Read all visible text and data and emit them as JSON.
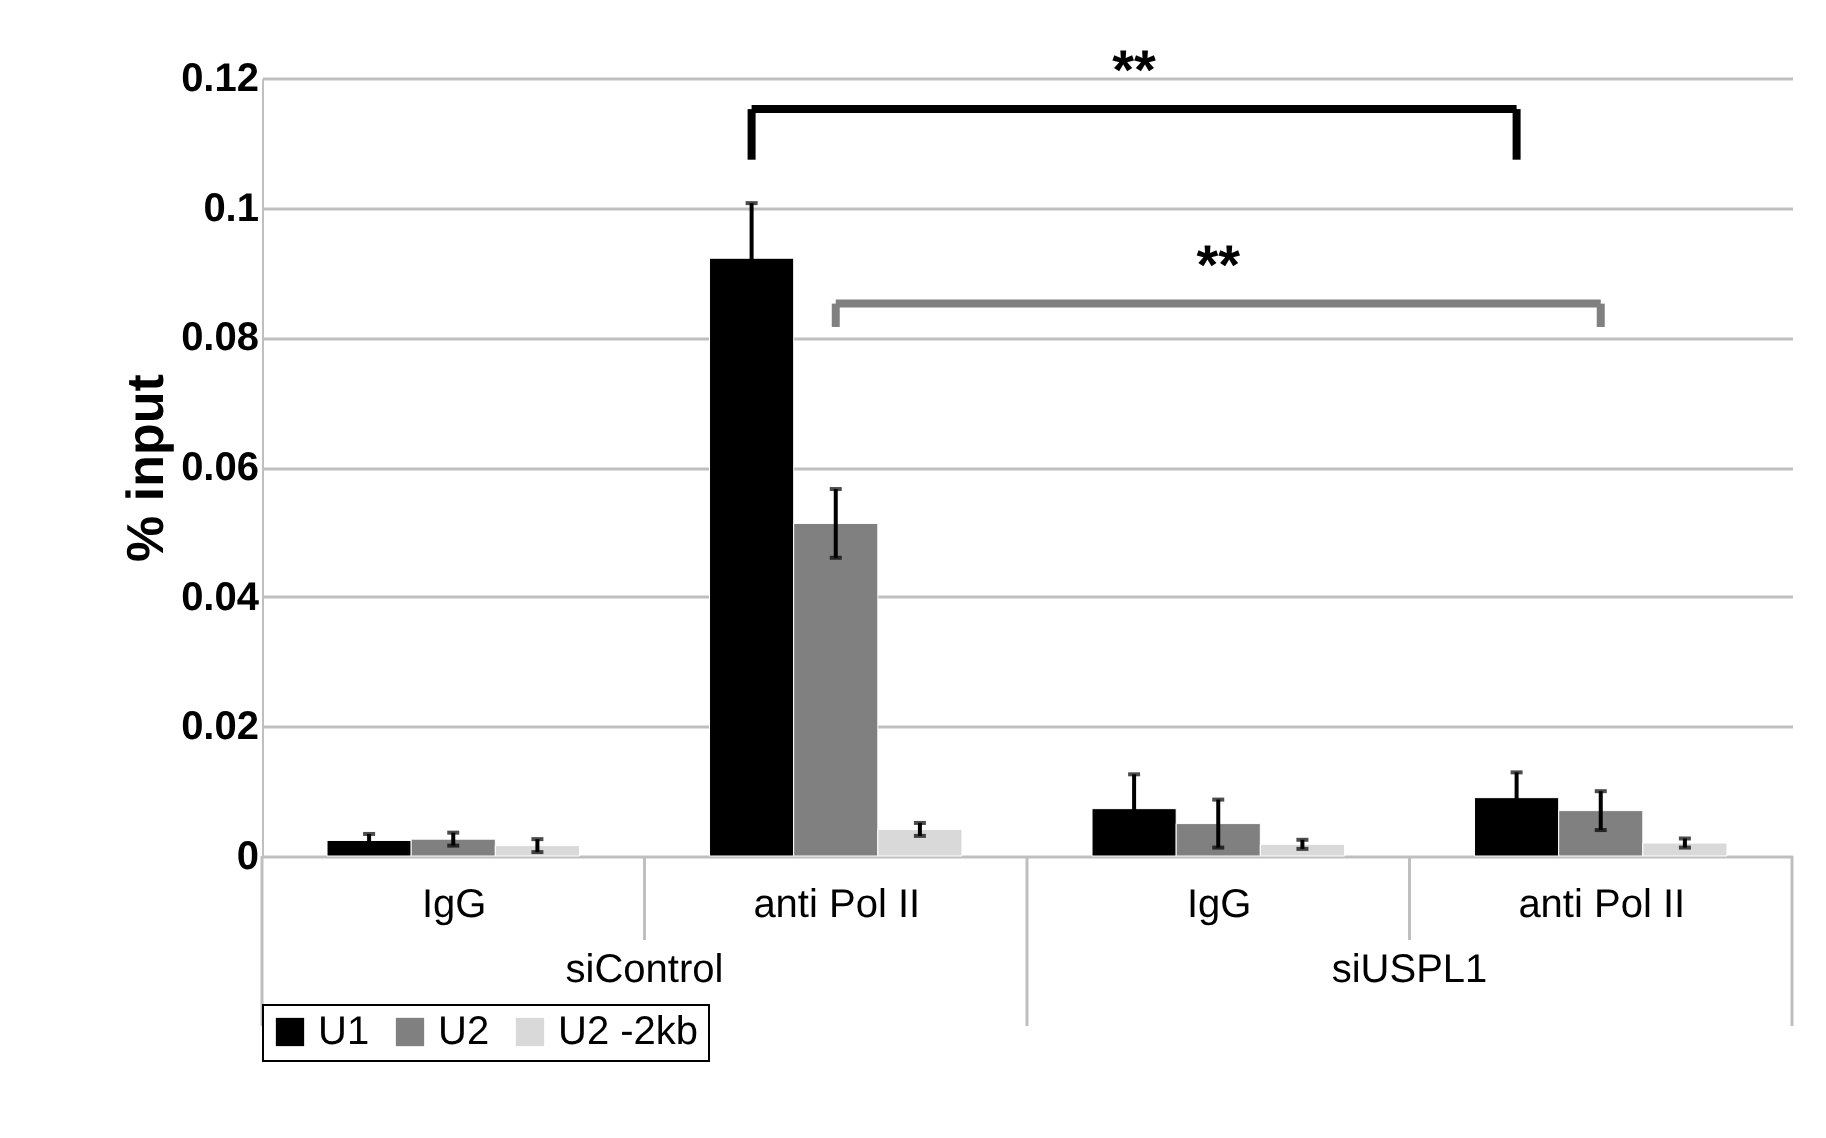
{
  "chart_data": {
    "type": "bar",
    "ylabel": "% input",
    "categories": [
      "IgG",
      "anti Pol II",
      "IgG",
      "anti Pol II"
    ],
    "series": [
      {
        "name": "U1",
        "color": "#000000",
        "values": [
          0.0024,
          0.0922,
          0.0073,
          0.009
        ],
        "errors": [
          0.001,
          0.0085,
          0.0053,
          0.0039
        ]
      },
      {
        "name": "U2",
        "color": "#808080",
        "values": [
          0.0026,
          0.0513,
          0.005,
          0.007
        ],
        "errors": [
          0.001,
          0.0053,
          0.0037,
          0.003
        ]
      },
      {
        "name": "U2 -2kb",
        "color": "#d9d9d9",
        "values": [
          0.0016,
          0.0041,
          0.0018,
          0.002
        ],
        "errors": [
          0.001,
          0.001,
          0.0007,
          0.0007
        ]
      }
    ],
    "ylim": [
      0,
      0.12
    ],
    "yticks": [
      {
        "value": 0,
        "label": "0"
      },
      0.02,
      0.04,
      0.06,
      0.08,
      {
        "value": 0.1,
        "label": "0.1"
      },
      0.12
    ],
    "grid": "y",
    "legend": "bottom",
    "annotations": [
      "**",
      "**",
      "siControl",
      "siUSPL1"
    ]
  }
}
